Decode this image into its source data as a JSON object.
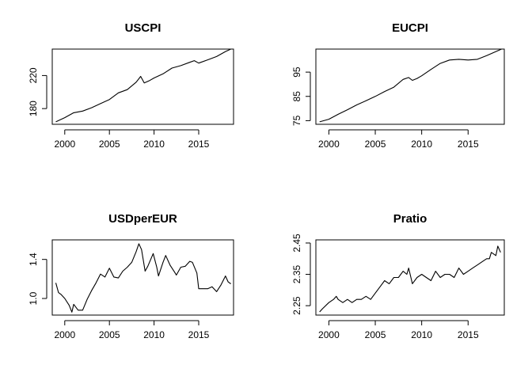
{
  "chart_data": [
    {
      "type": "line",
      "title": "USCPI",
      "xlabel": "",
      "ylabel": "",
      "xlim": [
        1998.6,
        2018.9
      ],
      "ylim": [
        161,
        252
      ],
      "xticks": [
        2000,
        2005,
        2010,
        2015
      ],
      "yticks": [
        180,
        220
      ],
      "xticklabels": [
        "2000",
        "2005",
        "2010",
        "2015"
      ],
      "yticklabels": [
        "180",
        "220"
      ],
      "series": [
        {
          "x": [
            1999.0,
            2000.0,
            2001.0,
            2002.0,
            2003.0,
            2004.0,
            2005.0,
            2006.0,
            2007.0,
            2008.0,
            2008.5,
            2008.9,
            2009.5,
            2010.0,
            2011.0,
            2012.0,
            2013.0,
            2014.0,
            2014.5,
            2015.0,
            2016.0,
            2017.0,
            2018.0,
            2018.6
          ],
          "y": [
            164,
            169,
            175,
            177,
            181,
            186,
            191,
            199,
            203,
            212,
            219,
            211,
            214,
            217,
            222,
            229,
            232,
            236,
            238,
            235,
            239,
            243,
            249,
            252
          ]
        }
      ]
    },
    {
      "type": "line",
      "title": "EUCPI",
      "xlabel": "",
      "ylabel": "",
      "xlim": [
        1998.6,
        2018.9
      ],
      "ylim": [
        73.5,
        104.5
      ],
      "xticks": [
        2000,
        2005,
        2010,
        2015
      ],
      "yticks": [
        75,
        85,
        95
      ],
      "xticklabels": [
        "2000",
        "2005",
        "2010",
        "2015"
      ],
      "yticklabels": [
        "75",
        "85",
        "95"
      ],
      "series": [
        {
          "x": [
            1999.0,
            2000.0,
            2001.0,
            2002.0,
            2003.0,
            2004.0,
            2005.0,
            2006.0,
            2007.0,
            2008.0,
            2008.6,
            2009.0,
            2009.5,
            2010.0,
            2011.0,
            2012.0,
            2013.0,
            2014.0,
            2015.0,
            2016.0,
            2017.0,
            2018.0,
            2018.6
          ],
          "y": [
            74.5,
            75.6,
            77.6,
            79.5,
            81.5,
            83.2,
            85.0,
            87.0,
            88.8,
            92.0,
            92.8,
            91.6,
            92.4,
            93.5,
            96.1,
            98.6,
            100.0,
            100.3,
            100.0,
            100.3,
            101.8,
            103.5,
            104.5
          ]
        }
      ]
    },
    {
      "type": "line",
      "title": "USDperEUR",
      "xlabel": "",
      "ylabel": "",
      "xlim": [
        1998.6,
        2018.9
      ],
      "ylim": [
        0.83,
        1.6
      ],
      "xticks": [
        2000,
        2005,
        2010,
        2015
      ],
      "yticks": [
        1.0,
        1.4
      ],
      "xticklabels": [
        "2000",
        "2005",
        "2010",
        "2015"
      ],
      "yticklabels": [
        "1.0",
        "1.4"
      ],
      "series": [
        {
          "x": [
            1999.0,
            1999.3,
            1999.6,
            2000.0,
            2000.5,
            2000.8,
            2001.0,
            2001.5,
            2002.0,
            2002.5,
            2003.0,
            2003.5,
            2004.0,
            2004.5,
            2005.0,
            2005.5,
            2006.0,
            2006.5,
            2007.0,
            2007.5,
            2008.0,
            2008.3,
            2008.6,
            2009.0,
            2009.3,
            2009.9,
            2010.3,
            2010.5,
            2011.0,
            2011.3,
            2011.8,
            2012.3,
            2012.5,
            2013.0,
            2013.5,
            2014.0,
            2014.3,
            2014.8,
            2015.0,
            2015.3,
            2015.6,
            2016.0,
            2016.5,
            2017.0,
            2017.5,
            2018.0,
            2018.3,
            2018.6
          ],
          "y": [
            1.16,
            1.06,
            1.04,
            1.0,
            0.93,
            0.86,
            0.94,
            0.88,
            0.88,
            0.99,
            1.08,
            1.16,
            1.25,
            1.22,
            1.31,
            1.22,
            1.21,
            1.28,
            1.32,
            1.37,
            1.48,
            1.56,
            1.5,
            1.28,
            1.33,
            1.46,
            1.32,
            1.23,
            1.37,
            1.44,
            1.34,
            1.27,
            1.24,
            1.32,
            1.33,
            1.38,
            1.37,
            1.26,
            1.1,
            1.1,
            1.1,
            1.1,
            1.12,
            1.07,
            1.14,
            1.23,
            1.17,
            1.15
          ]
        }
      ]
    },
    {
      "type": "line",
      "title": "Pratio",
      "xlabel": "",
      "ylabel": "",
      "xlim": [
        1998.6,
        2018.9
      ],
      "ylim": [
        2.22,
        2.46
      ],
      "xticks": [
        2000,
        2005,
        2010,
        2015
      ],
      "yticks": [
        2.25,
        2.35,
        2.45
      ],
      "xticklabels": [
        "2000",
        "2005",
        "2010",
        "2015"
      ],
      "yticklabels": [
        "2.25",
        "2.35",
        "2.45"
      ],
      "series": [
        {
          "x": [
            1999.0,
            1999.3,
            2000.0,
            2000.5,
            2000.8,
            2001.0,
            2001.5,
            2002.0,
            2002.5,
            2003.0,
            2003.5,
            2004.0,
            2004.5,
            2005.0,
            2005.5,
            2006.0,
            2006.5,
            2007.0,
            2007.5,
            2008.0,
            2008.4,
            2008.6,
            2009.0,
            2009.5,
            2010.0,
            2010.5,
            2011.0,
            2011.5,
            2012.0,
            2012.5,
            2013.0,
            2013.5,
            2014.0,
            2014.5,
            2015.0,
            2015.5,
            2016.0,
            2016.5,
            2017.0,
            2017.3,
            2017.5,
            2018.0,
            2018.2,
            2018.5
          ],
          "y": [
            2.23,
            2.24,
            2.26,
            2.27,
            2.28,
            2.27,
            2.26,
            2.27,
            2.26,
            2.27,
            2.27,
            2.28,
            2.27,
            2.29,
            2.31,
            2.33,
            2.32,
            2.34,
            2.34,
            2.36,
            2.35,
            2.37,
            2.32,
            2.34,
            2.35,
            2.34,
            2.33,
            2.36,
            2.34,
            2.35,
            2.35,
            2.34,
            2.37,
            2.35,
            2.36,
            2.37,
            2.38,
            2.39,
            2.4,
            2.4,
            2.42,
            2.41,
            2.44,
            2.42
          ]
        }
      ]
    }
  ]
}
